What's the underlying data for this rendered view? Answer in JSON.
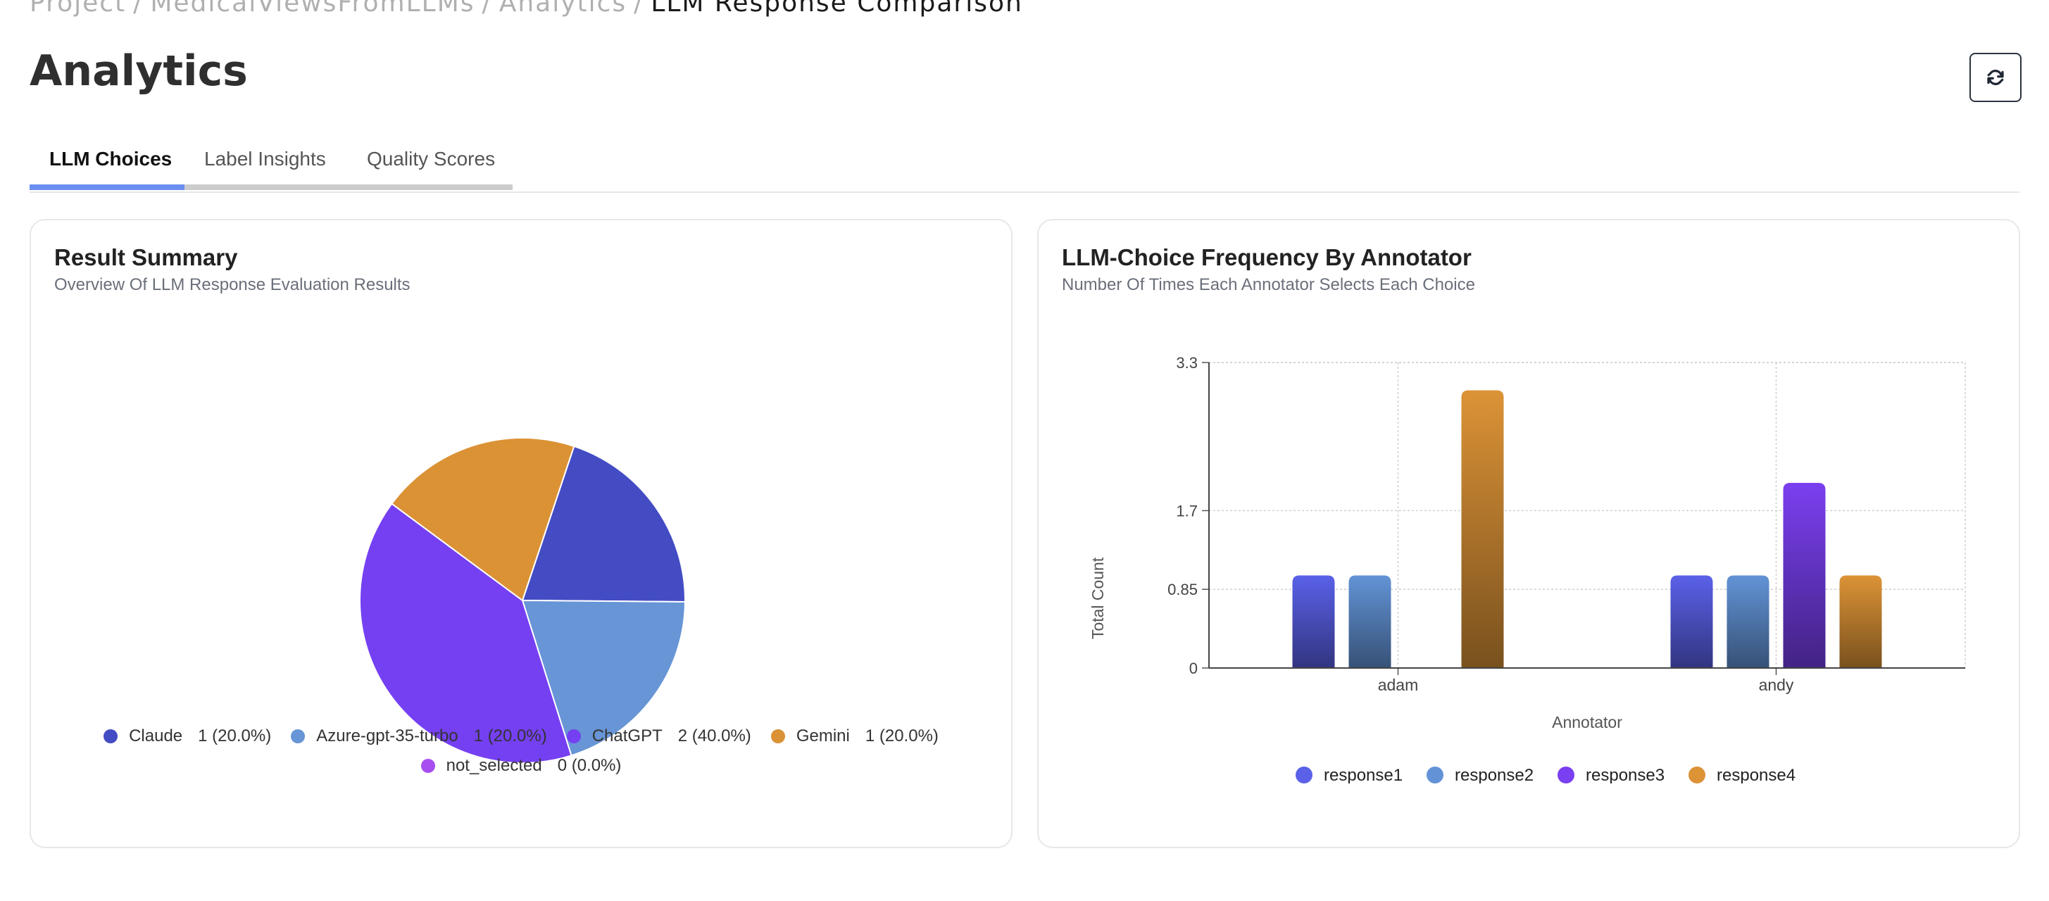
{
  "breadcrumb": [
    "Project",
    "MedicalViewsFromLLMs",
    "Analytics",
    "LLM Response Comparison"
  ],
  "breadcrumb_separator": "/",
  "page_title": "Analytics",
  "refresh_icon": "refresh-icon",
  "tabs": [
    {
      "label": "LLM Choices",
      "active": true
    },
    {
      "label": "Label Insights",
      "active": false
    },
    {
      "label": "Quality Scores",
      "active": false
    }
  ],
  "colors": {
    "accent": "#6b8ef2",
    "claude": "#444cc4",
    "azure": "#6795d6",
    "chatgpt": "#7540f2",
    "gemini": "#db9235",
    "not_selected": "#a64ef0"
  },
  "summary_card": {
    "title": "Result Summary",
    "subtitle": "Overview Of LLM Response Evaluation Results"
  },
  "frequency_card": {
    "title": "LLM-Choice Frequency By Annotator",
    "subtitle": "Number Of Times Each Annotator Selects Each Choice"
  },
  "chart_data": [
    {
      "type": "pie",
      "slices": [
        {
          "label": "Claude",
          "value": 1,
          "value_text": "1 (20.0%)",
          "color": "#444cc4"
        },
        {
          "label": "Azure-gpt-35-turbo",
          "value": 1,
          "value_text": "1 (20.0%)",
          "color": "#6795d6"
        },
        {
          "label": "ChatGPT",
          "value": 2,
          "value_text": "2 (40.0%)",
          "color": "#7540f2"
        },
        {
          "label": "Gemini",
          "value": 1,
          "value_text": "1 (20.0%)",
          "color": "#db9235"
        },
        {
          "label": "not_selected",
          "value": 0,
          "value_text": "0 (0.0%)",
          "color": "#a64ef0"
        }
      ],
      "legend_placement": "bottom"
    },
    {
      "type": "bar",
      "categories": [
        "adam",
        "andy"
      ],
      "series": [
        {
          "name": "response1",
          "values": [
            1,
            1
          ],
          "color": "#5a61e8"
        },
        {
          "name": "response2",
          "values": [
            1,
            1
          ],
          "color": "#6393d6"
        },
        {
          "name": "response3",
          "values": [
            0,
            2
          ],
          "color": "#7a3ff0"
        },
        {
          "name": "response4",
          "values": [
            3,
            1
          ],
          "color": "#dc9336"
        }
      ],
      "xlabel": "Annotator",
      "ylabel": "Total Count",
      "yticks": [
        "0",
        "0.85",
        "1.7",
        "3.3"
      ],
      "ytick_values": [
        0,
        0.85,
        1.7,
        3.3
      ],
      "ylim": [
        0,
        3.3
      ],
      "grid": true,
      "legend_placement": "bottom"
    }
  ]
}
